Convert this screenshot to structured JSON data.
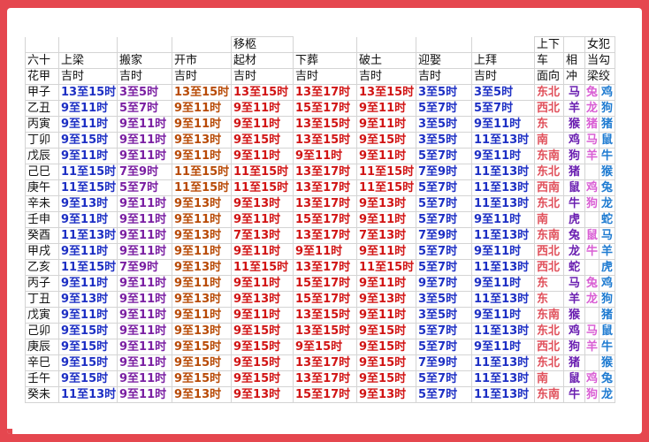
{
  "headers": {
    "col0": [
      "六十",
      "花甲"
    ],
    "shangliang": [
      "上梁",
      "吉时"
    ],
    "banjia": [
      "搬家",
      "吉时"
    ],
    "kaishi": [
      "开市",
      "吉时"
    ],
    "yijiu_top": "移柩",
    "yijiu": [
      "起材",
      "吉时"
    ],
    "xiazang": [
      "下葬",
      "吉时"
    ],
    "potu": [
      "破土",
      "吉时"
    ],
    "yingqu": [
      "迎娶",
      "吉时"
    ],
    "shangbai": [
      "上拜",
      "吉时"
    ],
    "che": [
      "上下",
      "车",
      "面向"
    ],
    "xiang": [
      "相",
      "冲"
    ],
    "nvfan": [
      "女犯",
      "当勾",
      "梁绞"
    ]
  },
  "rows": [
    [
      "甲子",
      "13至15时",
      "3至5时",
      "13至15时",
      "13至15时",
      "13至17时",
      "13至15时",
      "3至5时",
      "3至5时",
      "东北",
      "马",
      "兔",
      "鸡"
    ],
    [
      "乙丑",
      "9至11时",
      "5至7时",
      "9至11时",
      "9至11时",
      "15至17时",
      "9至11时",
      "5至7时",
      "5至7时",
      "西北",
      "羊",
      "龙",
      "狗"
    ],
    [
      "丙寅",
      "9至11时",
      "9至11时",
      "9至11时",
      "9至11时",
      "13至15时",
      "9至11时",
      "3至5时",
      "9至11时",
      "东",
      "猴",
      "猪",
      "猪"
    ],
    [
      "丁卯",
      "9至15时",
      "9至11时",
      "9至13时",
      "9至15时",
      "13至15时",
      "9至15时",
      "3至5时",
      "11至13时",
      "南",
      "鸡",
      "马",
      "鼠"
    ],
    [
      "戊辰",
      "9至11时",
      "9至11时",
      "9至11时",
      "9至11时",
      "9至11时",
      "9至11时",
      "5至7时",
      "9至11时",
      "东南",
      "狗",
      "羊",
      "牛"
    ],
    [
      "己巳",
      "11至15时",
      "7至9时",
      "11至15时",
      "11至15时",
      "13至17时",
      "11至15时",
      "7至9时",
      "11至13时",
      "东北",
      "猪",
      "",
      "猴"
    ],
    [
      "庚午",
      "11至15时",
      "5至7时",
      "11至15时",
      "11至15时",
      "13至17时",
      "11至15时",
      "5至7时",
      "11至13时",
      "西南",
      "鼠",
      "鸡",
      "兔"
    ],
    [
      "辛未",
      "9至13时",
      "9至11时",
      "9至13时",
      "9至13时",
      "13至17时",
      "9至13时",
      "5至7时",
      "11至13时",
      "东北",
      "牛",
      "狗",
      "龙"
    ],
    [
      "壬申",
      "9至11时",
      "9至11时",
      "9至11时",
      "9至11时",
      "15至17时",
      "9至11时",
      "5至7时",
      "9至11时",
      "南",
      "虎",
      "",
      "蛇"
    ],
    [
      "癸酉",
      "11至13时",
      "9至11时",
      "9至13时",
      "7至13时",
      "13至17时",
      "7至13时",
      "7至9时",
      "11至13时",
      "东南",
      "兔",
      "鼠",
      "马"
    ],
    [
      "甲戌",
      "9至11时",
      "9至11时",
      "9至11时",
      "9至11时",
      "9至11时",
      "9至11时",
      "5至7时",
      "9至11时",
      "西北",
      "龙",
      "牛",
      "羊"
    ],
    [
      "乙亥",
      "11至15时",
      "7至9时",
      "9至13时",
      "11至15时",
      "13至17时",
      "11至15时",
      "5至7时",
      "11至13时",
      "西北",
      "蛇",
      "",
      "虎"
    ],
    [
      "丙子",
      "9至11时",
      "9至11时",
      "9至11时",
      "9至11时",
      "15至17时",
      "9至11时",
      "9至7时",
      "9至11时",
      "东",
      "马",
      "兔",
      "鸡"
    ],
    [
      "丁丑",
      "9至13时",
      "9至11时",
      "9至13时",
      "9至13时",
      "15至17时",
      "9至13时",
      "3至5时",
      "11至13时",
      "东",
      "羊",
      "龙",
      "狗"
    ],
    [
      "戊寅",
      "9至11时",
      "9至11时",
      "9至11时",
      "9至11时",
      "13至15时",
      "9至11时",
      "3至5时",
      "9至11时",
      "东南",
      "猴",
      "",
      "猪"
    ],
    [
      "己卯",
      "9至15时",
      "9至11时",
      "9至13时",
      "9至15时",
      "13至15时",
      "9至15时",
      "5至7时",
      "11至13时",
      "东北",
      "鸡",
      "马",
      "鼠"
    ],
    [
      "庚辰",
      "9至15时",
      "9至11时",
      "9至15时",
      "9至15时",
      "9至15时",
      "9至15时",
      "5至7时",
      "9至11时",
      "西北",
      "狗",
      "羊",
      "牛"
    ],
    [
      "辛巳",
      "9至15时",
      "9至11时",
      "9至15时",
      "9至15时",
      "13至17时",
      "9至15时",
      "7至9时",
      "11至13时",
      "东北",
      "猪",
      "",
      "猴"
    ],
    [
      "壬午",
      "9至15时",
      "9至11时",
      "9至15时",
      "9至15时",
      "13至17时",
      "9至15时",
      "5至7时",
      "11至13时",
      "南",
      "鼠",
      "鸡",
      "兔"
    ],
    [
      "癸未",
      "11至13时",
      "9至11时",
      "9至13时",
      "9至13时",
      "15至17时",
      "9至13时",
      "5至7时",
      "11至13时",
      "东南",
      "牛",
      "狗",
      "龙"
    ]
  ]
}
